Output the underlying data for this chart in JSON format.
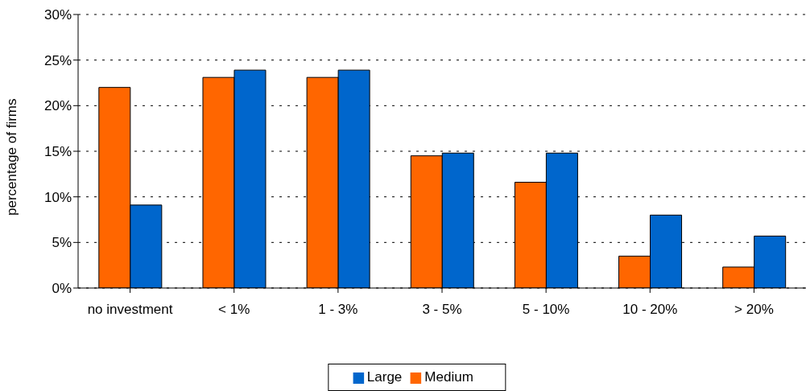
{
  "chart_data": {
    "type": "bar",
    "ylabel": "percentage of firms",
    "categories": [
      "no investment",
      "< 1%",
      "1 - 3%",
      "3 - 5%",
      "5 - 10%",
      "10 - 20%",
      "> 20%"
    ],
    "series": [
      {
        "name": "Medium",
        "color": "#ff6600",
        "values": [
          22.0,
          23.1,
          23.1,
          14.5,
          11.6,
          3.5,
          2.3
        ]
      },
      {
        "name": "Large",
        "color": "#0066cc",
        "values": [
          9.1,
          23.9,
          23.9,
          14.8,
          14.8,
          8.0,
          5.7
        ]
      }
    ],
    "ylim": [
      0,
      30
    ],
    "yticks": [
      {
        "value": 0,
        "label": "0%"
      },
      {
        "value": 5,
        "label": "5%"
      },
      {
        "value": 10,
        "label": "10%"
      },
      {
        "value": 15,
        "label": "15%"
      },
      {
        "value": 20,
        "label": "20%"
      },
      {
        "value": 25,
        "label": "25%"
      },
      {
        "value": 30,
        "label": "30%"
      }
    ],
    "grid": "y",
    "legend": "bottom"
  }
}
